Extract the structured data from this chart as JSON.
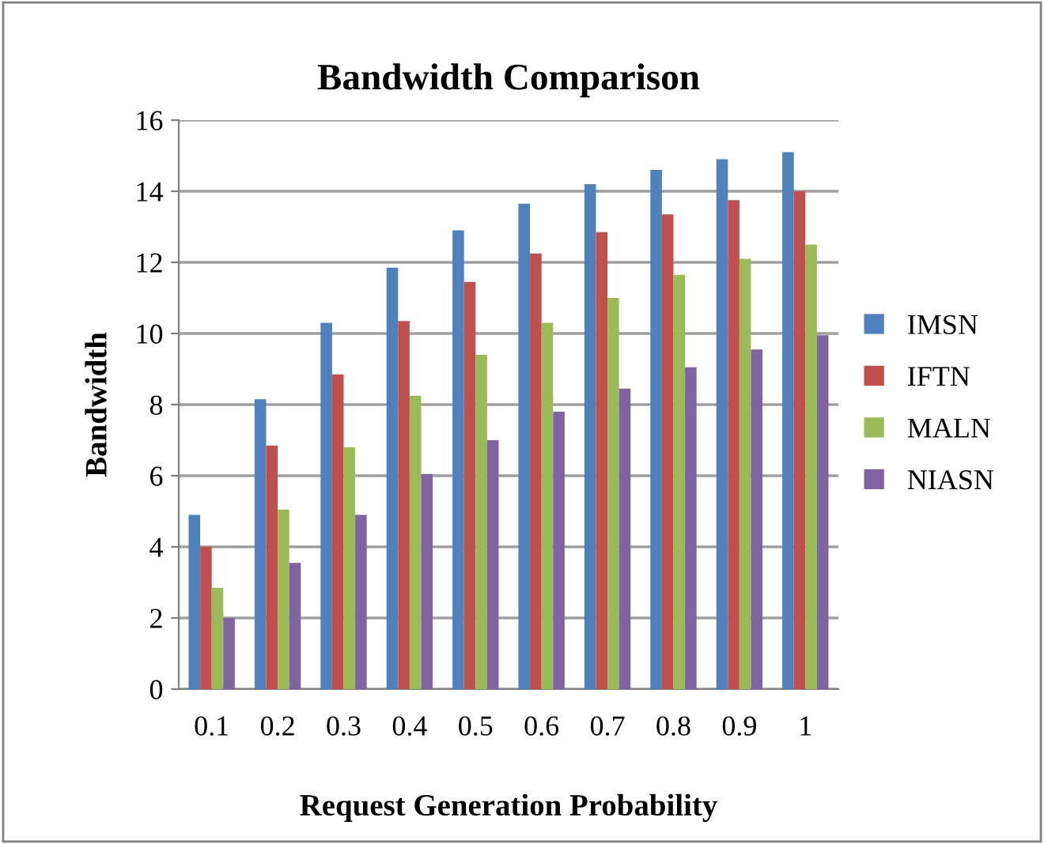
{
  "chart_data": {
    "type": "bar",
    "title": "Bandwidth Comparison",
    "xlabel": "Request Generation Probability",
    "ylabel": "Bandwidth",
    "categories": [
      "0.1",
      "0.2",
      "0.3",
      "0.4",
      "0.5",
      "0.6",
      "0.7",
      "0.8",
      "0.9",
      "1"
    ],
    "series": [
      {
        "name": "IMSN",
        "color": "#4f81bd",
        "values": [
          4.9,
          8.15,
          10.3,
          11.85,
          12.9,
          13.65,
          14.2,
          14.6,
          14.9,
          15.1
        ]
      },
      {
        "name": "IFTN",
        "color": "#c0504d",
        "values": [
          4.0,
          6.85,
          8.85,
          10.35,
          11.45,
          12.25,
          12.85,
          13.35,
          13.75,
          14.0
        ]
      },
      {
        "name": "MALN",
        "color": "#9bbb59",
        "values": [
          2.85,
          5.05,
          6.8,
          8.25,
          9.4,
          10.3,
          11.0,
          11.65,
          12.1,
          12.5
        ]
      },
      {
        "name": "NIASN",
        "color": "#8064a2",
        "values": [
          2.0,
          3.55,
          4.9,
          6.05,
          7.0,
          7.8,
          8.45,
          9.05,
          9.55,
          9.95
        ]
      }
    ],
    "ylim": [
      0,
      16
    ],
    "yticks": [
      0,
      2,
      4,
      6,
      8,
      10,
      12,
      14,
      16
    ],
    "grid": "y",
    "legend": "right"
  }
}
